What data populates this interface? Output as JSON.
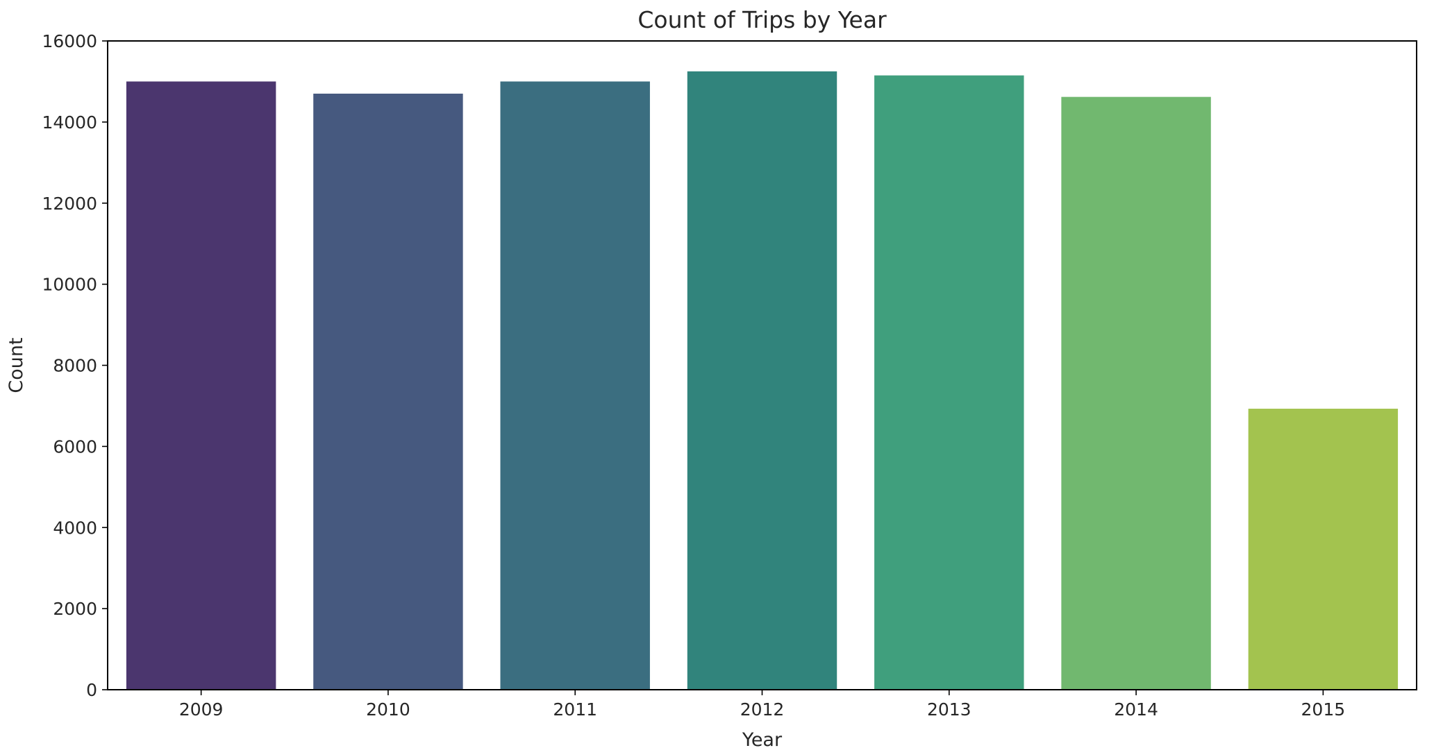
{
  "chart_data": {
    "type": "bar",
    "title": "Count of Trips by Year",
    "xlabel": "Year",
    "ylabel": "Count",
    "categories": [
      "2009",
      "2010",
      "2011",
      "2012",
      "2013",
      "2014",
      "2015"
    ],
    "values": [
      15000,
      14700,
      15000,
      15250,
      15150,
      14620,
      6930
    ],
    "ylim": [
      0,
      16000
    ],
    "yticks": [
      "0",
      "2000",
      "4000",
      "6000",
      "8000",
      "10000",
      "12000",
      "14000",
      "16000"
    ],
    "colors": [
      "#4b366e",
      "#46597f",
      "#3b6e80",
      "#31847c",
      "#409f7d",
      "#71b86f",
      "#a3c34f"
    ],
    "grid": false,
    "legend": "none"
  }
}
